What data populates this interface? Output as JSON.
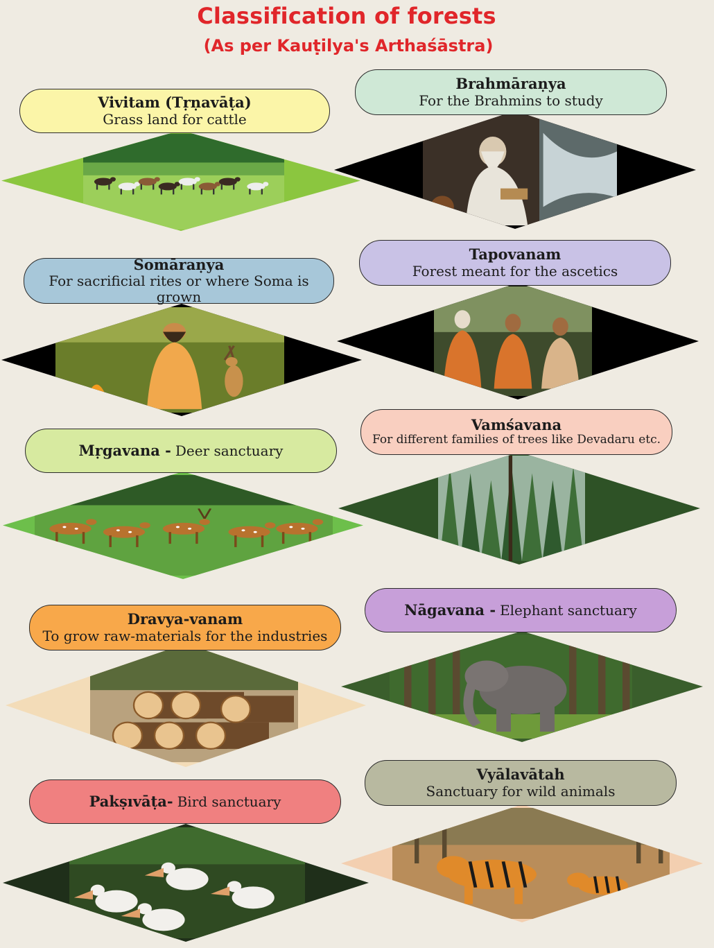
{
  "title": "Classification of forests",
  "subtitle": "(As per Kauṭilya's Arthaśāstra)",
  "forests": [
    {
      "name": "Vivitam (Tṛṇavāṭa)",
      "desc": "Grass land for cattle",
      "pill_color": "#fbf5a8",
      "side_color": "#8bc63f",
      "scene": "cattle-grassland",
      "icon": "cattle-icon"
    },
    {
      "name": "Brahmāraṇya",
      "desc": "For the Brahmins to study",
      "pill_color": "#cfe8d6",
      "side_color": "#000000",
      "scene": "sage-studying",
      "icon": "sage-icon"
    },
    {
      "name": "Somāraṇya",
      "desc": "For sacrificial rites or where Soma is grown",
      "pill_color": "#a7c7d9",
      "side_color": "#000000",
      "scene": "sage-with-fire-and-deer",
      "icon": "fire-icon"
    },
    {
      "name": "Tapovanam",
      "desc": "Forest meant for the ascetics",
      "pill_color": "#c9c2e6",
      "side_color": "#000000",
      "scene": "meditating-ascetics",
      "icon": "ascetic-icon"
    },
    {
      "name": "Mṛgavana -",
      "desc": "Deer sanctuary",
      "pill_color": "#d7eaa0",
      "side_color": "#6dbf4b",
      "scene": "deer-herd",
      "icon": "deer-icon"
    },
    {
      "name": "Vamśavana",
      "desc": "For different families of trees like Devadaru etc.",
      "pill_color": "#f9cfc0",
      "side_color": "#2e5226",
      "scene": "conifer-forest",
      "icon": "tree-icon"
    },
    {
      "name": "Dravya-vanam",
      "desc": "To grow raw-materials for the industries",
      "pill_color": "#f8a84a",
      "side_color": "#f3dcb8",
      "scene": "timber-logs",
      "icon": "log-icon"
    },
    {
      "name": "Nāgavana -",
      "desc": "Elephant sanctuary",
      "pill_color": "#c79fd9",
      "side_color": "#3a5e2c",
      "scene": "elephant-in-forest",
      "icon": "elephant-icon"
    },
    {
      "name": "Pakṣıvāṭa-",
      "desc": "Bird sanctuary",
      "pill_color": "#f08080",
      "side_color": "#1f2f1a",
      "scene": "pelicans",
      "icon": "bird-icon"
    },
    {
      "name": "Vyālavātah",
      "desc": "Sanctuary for wild animals",
      "pill_color": "#b8b9a0",
      "side_color": "#f3cfb0",
      "scene": "tigers",
      "icon": "tiger-icon"
    }
  ]
}
